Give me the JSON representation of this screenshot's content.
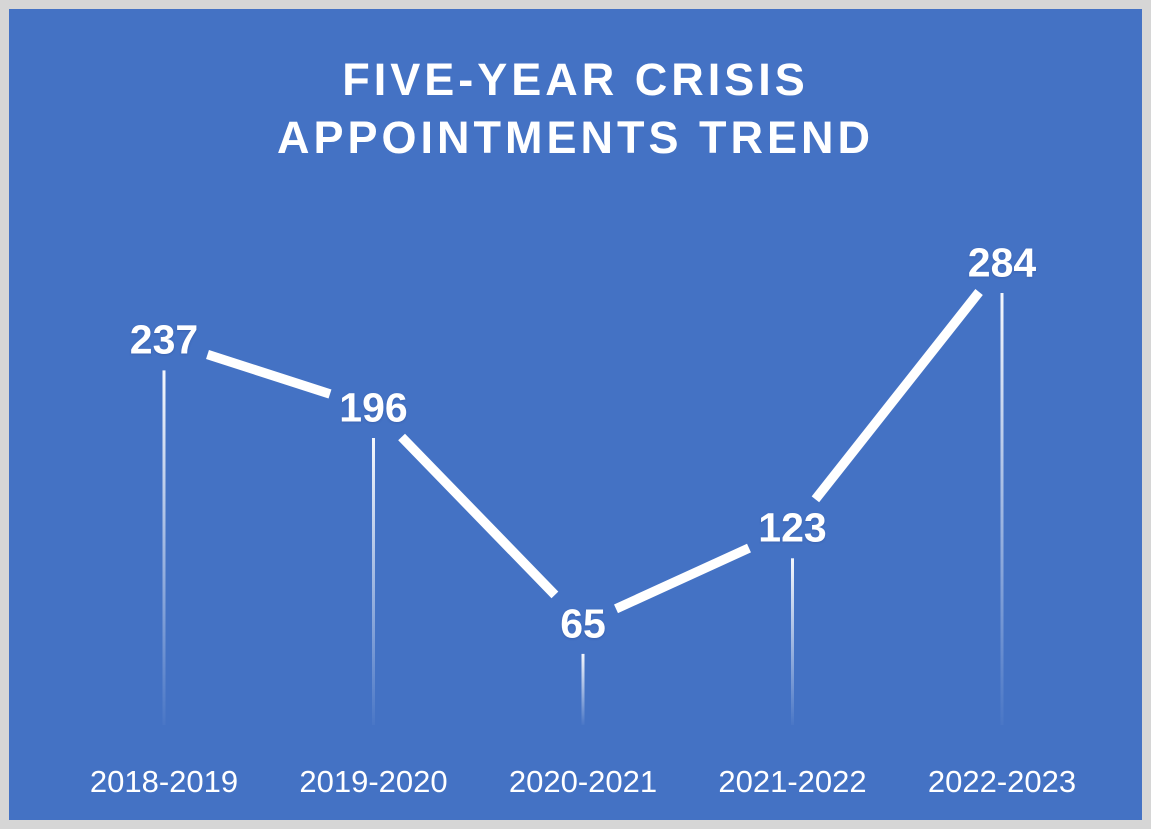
{
  "title": {
    "line1": "FIVE-YEAR CRISIS",
    "line2": "APPOINTMENTS TREND"
  },
  "colors": {
    "background": "#4472C4",
    "frame": "#D6D6D6",
    "line": "#FFFFFF",
    "text": "#FFFFFF"
  },
  "chart_data": {
    "type": "line",
    "title": "FIVE-YEAR CRISIS APPOINTMENTS TREND",
    "categories": [
      "2018-2019",
      "2019-2020",
      "2020-2021",
      "2021-2022",
      "2022-2023"
    ],
    "series": [
      {
        "name": "",
        "values": [
          237,
          196,
          65,
          123,
          284
        ]
      }
    ],
    "data_labels": [
      "237",
      "196",
      "65",
      "123",
      "284"
    ],
    "ylim": [
      0,
      300
    ],
    "xlabel": "",
    "ylabel": "",
    "legend": "none",
    "gridlines": false,
    "y_axis_visible": false,
    "drop_lines": true,
    "line_style": "thick-white-segments-with-label-gaps"
  }
}
